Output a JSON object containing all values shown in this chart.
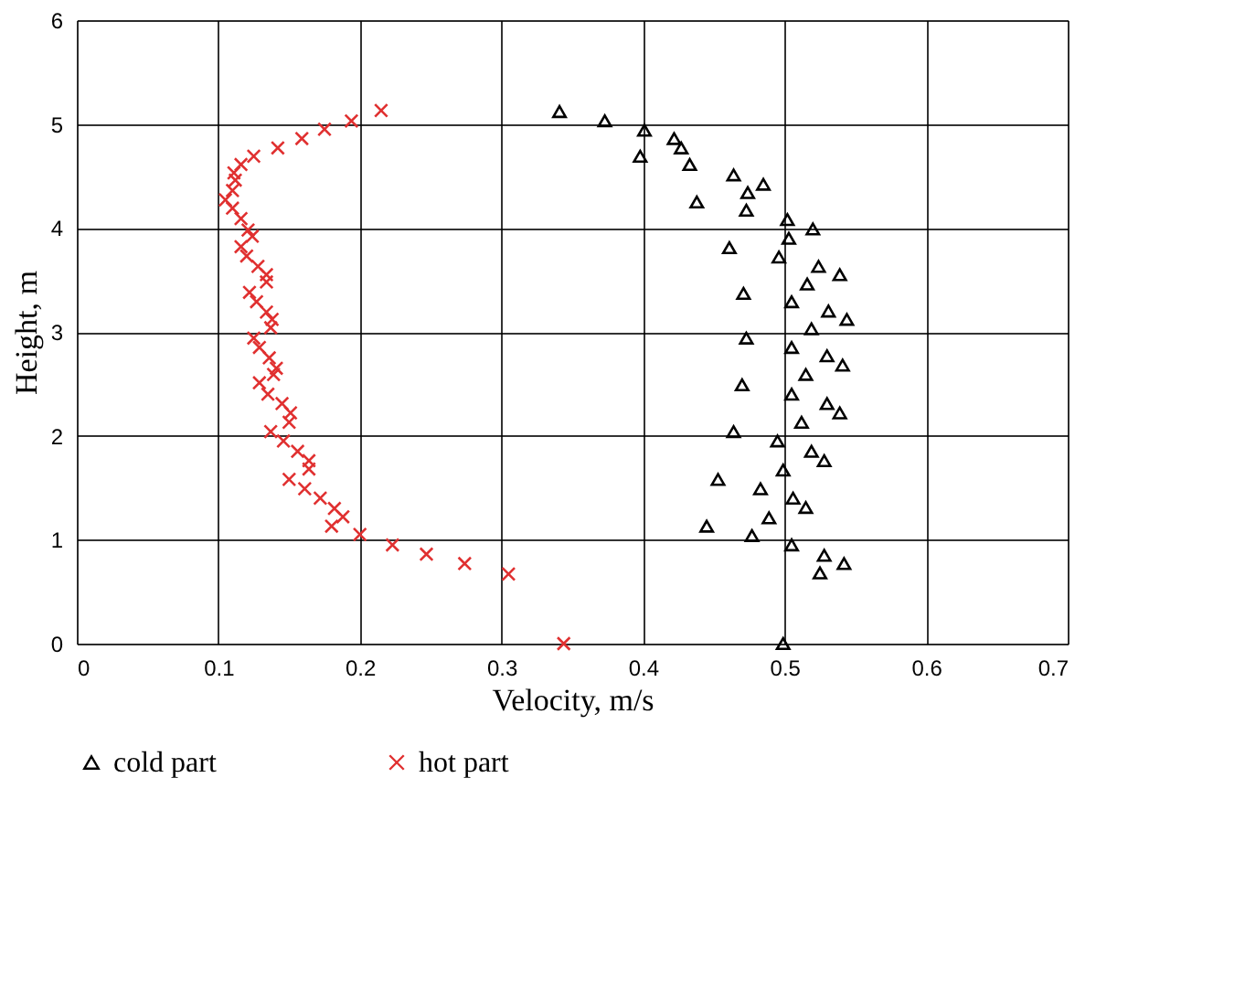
{
  "chart_data": {
    "type": "scatter",
    "xlabel": "Velocity, m/s",
    "ylabel": "Height, m",
    "xlim": [
      0,
      0.7
    ],
    "xticks": [
      0,
      0.1,
      0.2,
      0.3,
      0.4,
      0.5,
      0.6,
      0.7
    ],
    "ylim": [
      0,
      6
    ],
    "yticks": [
      0,
      1,
      2,
      3,
      4,
      5,
      6
    ],
    "grid": true,
    "legend": "bottom",
    "series": [
      {
        "name": "cold part",
        "color": "#000000",
        "marker": "triangle",
        "x": [
          0.341,
          0.373,
          0.401,
          0.422,
          0.427,
          0.398,
          0.433,
          0.464,
          0.485,
          0.474,
          0.438,
          0.473,
          0.502,
          0.52,
          0.503,
          0.461,
          0.496,
          0.524,
          0.539,
          0.516,
          0.471,
          0.505,
          0.531,
          0.544,
          0.519,
          0.473,
          0.505,
          0.53,
          0.541,
          0.515,
          0.47,
          0.505,
          0.53,
          0.539,
          0.512,
          0.464,
          0.495,
          0.519,
          0.528,
          0.499,
          0.453,
          0.483,
          0.506,
          0.515,
          0.489,
          0.445,
          0.477,
          0.505,
          0.528,
          0.542,
          0.525,
          0.499
        ],
        "values": [
          5.12,
          5.03,
          4.94,
          4.86,
          4.77,
          4.69,
          4.61,
          4.51,
          4.42,
          4.34,
          4.25,
          4.17,
          4.08,
          3.99,
          3.9,
          3.81,
          3.72,
          3.63,
          3.55,
          3.46,
          3.37,
          3.29,
          3.2,
          3.12,
          3.03,
          2.94,
          2.85,
          2.77,
          2.68,
          2.59,
          2.49,
          2.4,
          2.31,
          2.22,
          2.13,
          2.04,
          1.95,
          1.85,
          1.76,
          1.67,
          1.58,
          1.49,
          1.4,
          1.31,
          1.21,
          1.13,
          1.04,
          0.95,
          0.85,
          0.77,
          0.68,
          0.0
        ]
      },
      {
        "name": "hot part",
        "color": "#e03030",
        "marker": "cross",
        "x": [
          0.215,
          0.194,
          0.175,
          0.159,
          0.142,
          0.125,
          0.116,
          0.111,
          0.112,
          0.11,
          0.105,
          0.11,
          0.116,
          0.121,
          0.124,
          0.116,
          0.12,
          0.128,
          0.134,
          0.134,
          0.122,
          0.127,
          0.134,
          0.138,
          0.137,
          0.125,
          0.129,
          0.136,
          0.141,
          0.139,
          0.129,
          0.135,
          0.145,
          0.151,
          0.15,
          0.137,
          0.146,
          0.156,
          0.164,
          0.164,
          0.15,
          0.161,
          0.172,
          0.182,
          0.188,
          0.18,
          0.2,
          0.223,
          0.247,
          0.274,
          0.305,
          0.344
        ],
        "values": [
          5.13,
          5.03,
          4.95,
          4.86,
          4.77,
          4.69,
          4.61,
          4.53,
          4.46,
          4.36,
          4.27,
          4.19,
          4.09,
          3.98,
          3.92,
          3.82,
          3.73,
          3.63,
          3.55,
          3.48,
          3.38,
          3.29,
          3.19,
          3.12,
          3.04,
          2.94,
          2.85,
          2.75,
          2.65,
          2.59,
          2.51,
          2.4,
          2.31,
          2.22,
          2.13,
          2.04,
          1.95,
          1.85,
          1.76,
          1.68,
          1.58,
          1.49,
          1.4,
          1.3,
          1.22,
          1.13,
          1.05,
          0.95,
          0.86,
          0.77,
          0.67,
          0.0
        ]
      }
    ]
  }
}
